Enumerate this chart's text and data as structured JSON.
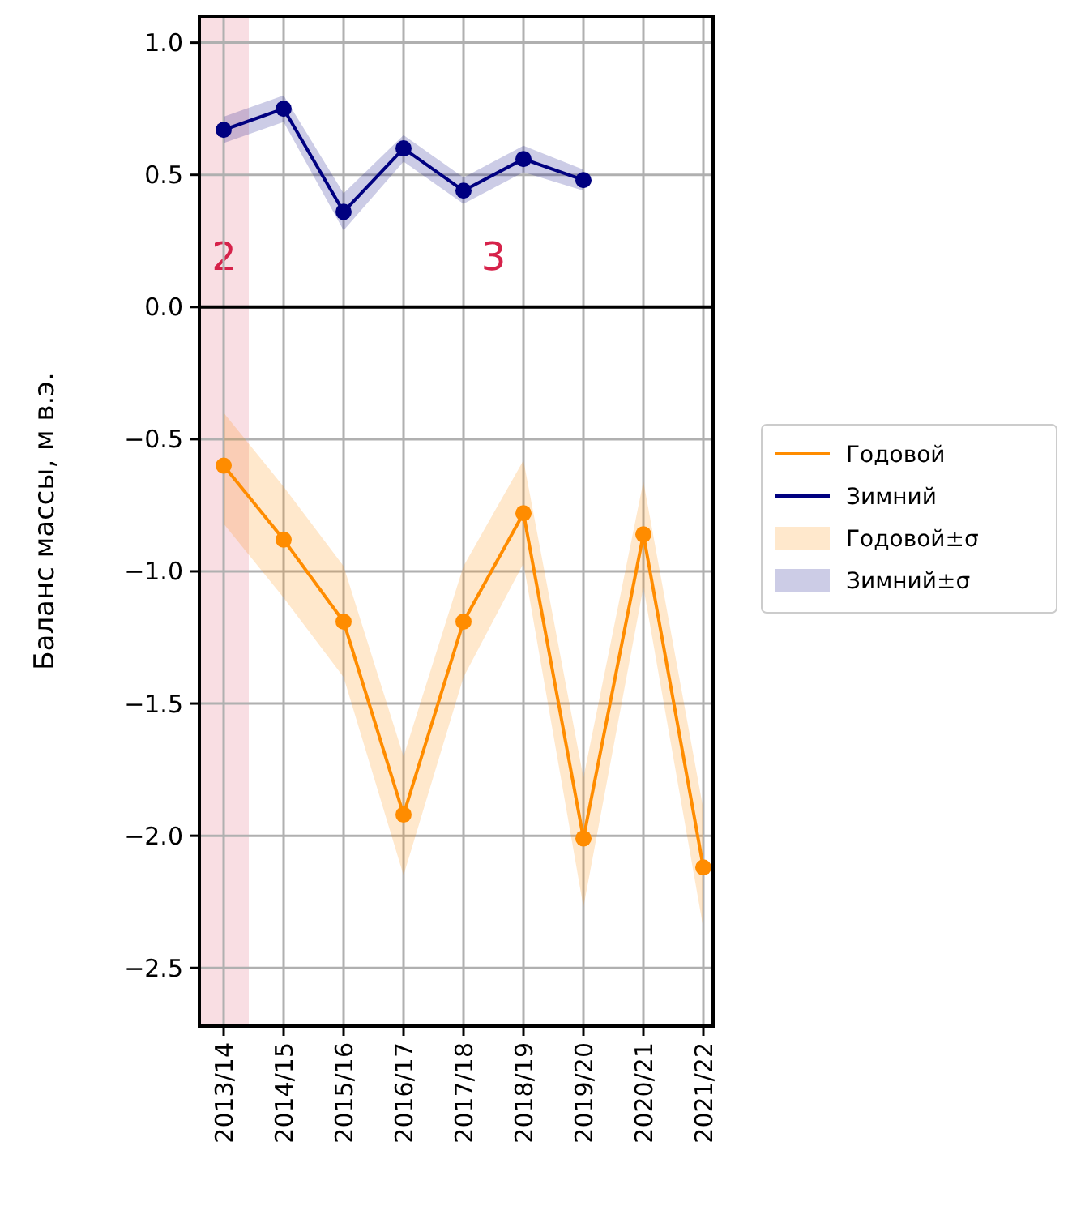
{
  "chart_data": {
    "type": "line",
    "ylabel": "Баланс массы, м в.э.",
    "categories": [
      "2013/14",
      "2014/15",
      "2015/16",
      "2016/17",
      "2017/18",
      "2018/19",
      "2019/20",
      "2020/21",
      "2021/22"
    ],
    "series": [
      {
        "name": "Годовой",
        "color": "#ff8c00",
        "values": [
          -0.6,
          -0.88,
          -1.19,
          -1.92,
          -1.19,
          -0.78,
          -2.01,
          -0.86,
          -2.12
        ],
        "lower": [
          -0.82,
          -1.1,
          -1.4,
          -2.15,
          -1.4,
          -0.97,
          -2.27,
          -1.06,
          -2.35
        ],
        "upper": [
          -0.4,
          -0.68,
          -0.98,
          -1.7,
          -0.98,
          -0.58,
          -1.78,
          -0.66,
          -1.9
        ]
      },
      {
        "name": "Зимний",
        "color": "#000080",
        "values": [
          0.67,
          0.75,
          0.36,
          0.6,
          0.44,
          0.56,
          0.48,
          null,
          null
        ],
        "lower": [
          0.62,
          0.7,
          0.29,
          0.55,
          0.39,
          0.51,
          0.44,
          null,
          null
        ],
        "upper": [
          0.72,
          0.8,
          0.43,
          0.65,
          0.49,
          0.61,
          0.52,
          null,
          null
        ]
      }
    ],
    "ylim": [
      -2.72,
      1.1
    ],
    "yticks": [
      {
        "value": -2.5,
        "label": "−2.5"
      },
      {
        "value": -2,
        "label": "−2.0"
      },
      {
        "value": -1.5,
        "label": "−1.5"
      },
      {
        "value": -1,
        "label": "−1.0"
      },
      {
        "value": -0.5,
        "label": "−0.5"
      },
      {
        "value": 0,
        "label": "0.0"
      },
      {
        "value": 0.5,
        "label": "0.5"
      },
      {
        "value": 1,
        "label": "1.0"
      }
    ],
    "grid": true,
    "legend": "right",
    "marker": "circle",
    "line_style": "solid",
    "ref_lines": [
      {
        "axis": "y",
        "value": 0,
        "color": "#000000",
        "line_style": "solid"
      }
    ],
    "bands": [
      {
        "axis": "x",
        "from": "2013/14",
        "to": "2013/14",
        "label": "2",
        "color": "#f8d6dc"
      }
    ],
    "annotations": [
      "3",
      "Годовой±σ",
      "Зимний±σ"
    ]
  }
}
